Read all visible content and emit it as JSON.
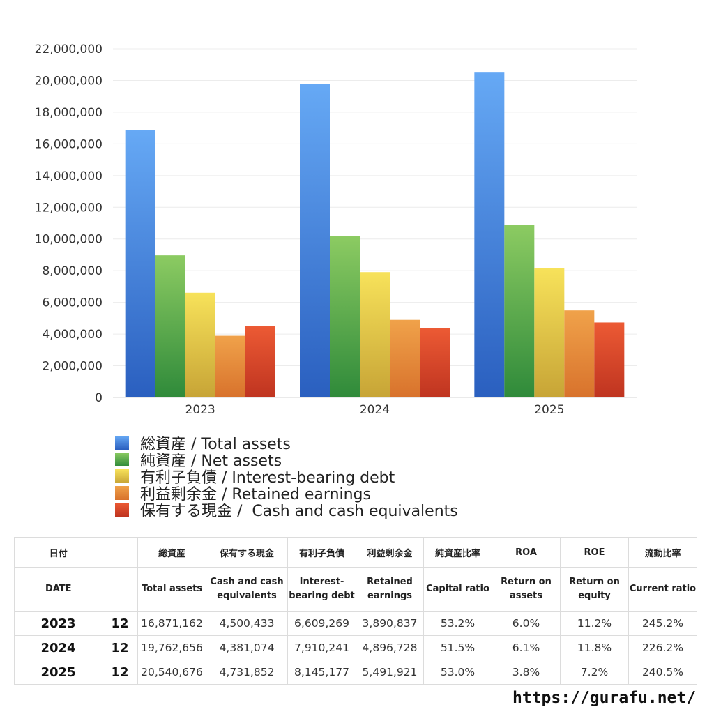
{
  "chart_data": {
    "type": "bar",
    "categories": [
      "2023",
      "2024",
      "2025"
    ],
    "ylim": [
      0,
      22000000
    ],
    "yticks": [
      "0",
      "2,000,000",
      "4,000,000",
      "6,000,000",
      "8,000,000",
      "10,000,000",
      "12,000,000",
      "14,000,000",
      "16,000,000",
      "18,000,000",
      "20,000,000",
      "22,000,000"
    ],
    "grid": true,
    "legend_position": "bottom",
    "series": [
      {
        "name": "総資産 / Total assets",
        "values": [
          16871162,
          19762656,
          20540676
        ],
        "color_top": "#66a9f5",
        "color_bottom": "#2a5fbf"
      },
      {
        "name": "純資産 / Net assets",
        "values": [
          8969446,
          10175168,
          10890001
        ],
        "color_top": "#8ccb62",
        "color_bottom": "#2f8a3a"
      },
      {
        "name": "有利子負債 / Interest-bearing debt",
        "values": [
          6609269,
          7910241,
          8145177
        ],
        "color_top": "#f7e25a",
        "color_bottom": "#c7a436"
      },
      {
        "name": "利益剰余金 / Retained earnings",
        "values": [
          3890837,
          4896728,
          5491921
        ],
        "color_top": "#f0a24a",
        "color_bottom": "#d8722c"
      },
      {
        "name": "保有する現金 /  Cash and cash equivalents",
        "values": [
          4500433,
          4381074,
          4731852
        ],
        "color_top": "#ec5a34",
        "color_bottom": "#bf3420"
      }
    ]
  },
  "table": {
    "header_jp": [
      "日付",
      "",
      "総資産",
      "保有する現金",
      "有利子負債",
      "利益剰余金",
      "純資産比率",
      "ROA",
      "ROE",
      "流動比率"
    ],
    "header_en": [
      "DATE",
      "",
      "Total assets",
      "Cash and cash equivalents",
      "Interest-bearing debt",
      "Retained earnings",
      "Capital ratio",
      "Return on assets",
      "Return on equity",
      "Current ratio"
    ],
    "rows": [
      {
        "year": "2023",
        "month": "12",
        "total_assets": "16,871,162",
        "cash": "4,500,433",
        "debt": "6,609,269",
        "retained": "3,890,837",
        "capital_ratio": "53.2%",
        "roa": "6.0%",
        "roe": "11.2%",
        "current_ratio": "245.2%"
      },
      {
        "year": "2024",
        "month": "12",
        "total_assets": "19,762,656",
        "cash": "4,381,074",
        "debt": "7,910,241",
        "retained": "4,896,728",
        "capital_ratio": "51.5%",
        "roa": "6.1%",
        "roe": "11.8%",
        "current_ratio": "226.2%"
      },
      {
        "year": "2025",
        "month": "12",
        "total_assets": "20,540,676",
        "cash": "4,731,852",
        "debt": "8,145,177",
        "retained": "5,491,921",
        "capital_ratio": "53.0%",
        "roa": "3.8%",
        "roe": "7.2%",
        "current_ratio": "240.5%"
      }
    ]
  },
  "footer": {
    "url": "https://gurafu.net/"
  }
}
